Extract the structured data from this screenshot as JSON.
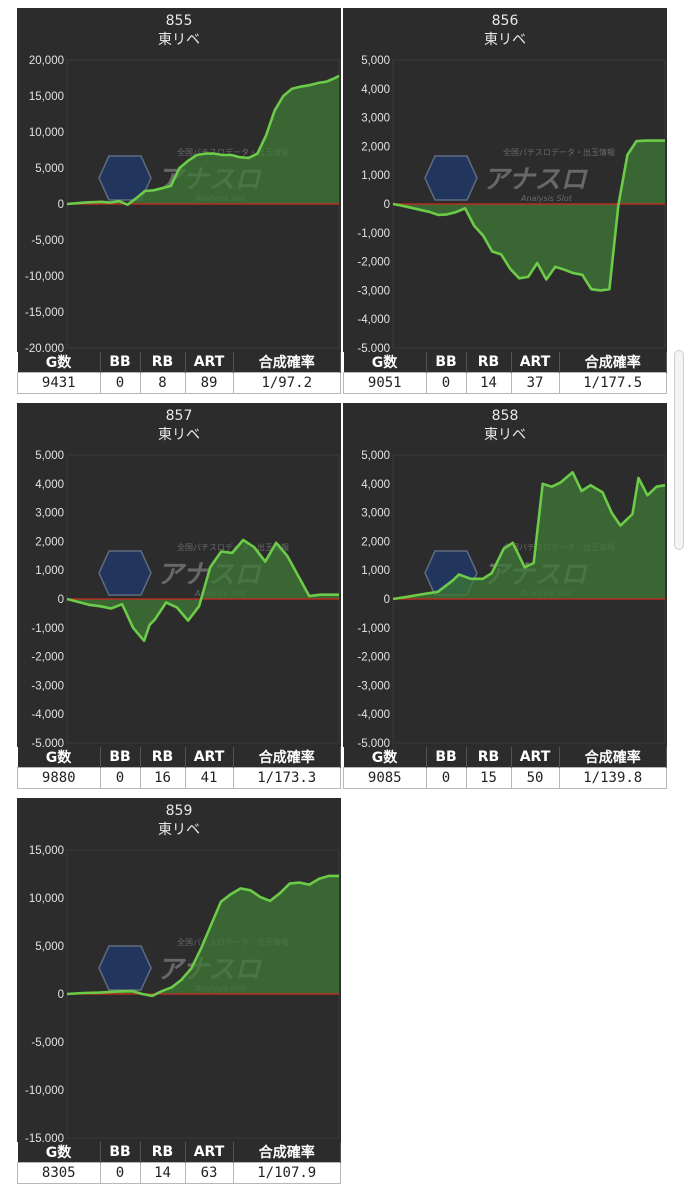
{
  "colors": {
    "line": "#6ccb49",
    "fill": "#3e7a36",
    "zero": "#d12a1f",
    "bg": "#2c2c2c"
  },
  "watermark": {
    "kana": "アナスロ",
    "tag": "Analysis Slot",
    "top": "全国パチスロデータ・出玉情報"
  },
  "stat_headers": [
    "G数",
    "BB",
    "RB",
    "ART",
    "合成確率"
  ],
  "panels": [
    {
      "id": "855",
      "name": "東リベ",
      "stats": [
        "9431",
        "0",
        "8",
        "89",
        "1/97.2"
      ]
    },
    {
      "id": "856",
      "name": "東リベ",
      "stats": [
        "9051",
        "0",
        "14",
        "37",
        "1/177.5"
      ]
    },
    {
      "id": "857",
      "name": "東リベ",
      "stats": [
        "9880",
        "0",
        "16",
        "41",
        "1/173.3"
      ]
    },
    {
      "id": "858",
      "name": "東リベ",
      "stats": [
        "9085",
        "0",
        "15",
        "50",
        "1/139.8"
      ]
    },
    {
      "id": "859",
      "name": "東リベ",
      "stats": [
        "8305",
        "0",
        "14",
        "63",
        "1/107.9"
      ]
    }
  ],
  "chart_data": [
    {
      "type": "area",
      "title": "855 東リベ",
      "ylim": [
        -20000,
        20000
      ],
      "yticks": [
        "20,000",
        "15,000",
        "10,000",
        "5,000",
        "0",
        "-5,000",
        "-10,000",
        "-15,000",
        "-20,000"
      ],
      "x": [
        0,
        300,
        600,
        900,
        1200,
        1500,
        1800,
        2100,
        2400,
        2700,
        3000,
        3300,
        3600,
        3900,
        4200,
        4500,
        4800,
        5100,
        5400,
        5700,
        6000,
        6300,
        6600,
        6900,
        7200,
        7500,
        7800,
        8100,
        8400,
        8700,
        9000,
        9300,
        9431
      ],
      "y": [
        0,
        100,
        200,
        250,
        300,
        200,
        400,
        -100,
        800,
        1800,
        1900,
        2200,
        2500,
        5000,
        6000,
        6800,
        7000,
        7000,
        6800,
        6800,
        6500,
        6400,
        7000,
        9500,
        13000,
        15000,
        16000,
        16300,
        16500,
        16800,
        17000,
        17500,
        17800
      ]
    },
    {
      "type": "area",
      "title": "856 東リベ",
      "ylim": [
        -5000,
        5000
      ],
      "yticks": [
        "5,000",
        "4,000",
        "3,000",
        "2,000",
        "1,000",
        "0",
        "-1,000",
        "-2,000",
        "-3,000",
        "-4,000",
        "-5,000"
      ],
      "x": [
        0,
        300,
        600,
        900,
        1200,
        1500,
        1800,
        2100,
        2400,
        2700,
        3000,
        3300,
        3600,
        3900,
        4200,
        4500,
        4800,
        5100,
        5400,
        5700,
        6000,
        6300,
        6600,
        6900,
        7200,
        7500,
        7800,
        8100,
        8400,
        8700,
        9051
      ],
      "y": [
        0,
        -60,
        -130,
        -200,
        -270,
        -380,
        -360,
        -280,
        -150,
        -750,
        -1100,
        -1650,
        -1750,
        -2250,
        -2580,
        -2530,
        -2050,
        -2620,
        -2180,
        -2280,
        -2400,
        -2460,
        -2960,
        -3000,
        -2960,
        -30,
        1700,
        2180,
        2200,
        2200,
        2200
      ]
    },
    {
      "type": "area",
      "title": "857 東リベ",
      "ylim": [
        -5000,
        5000
      ],
      "yticks": [
        "5,000",
        "4,000",
        "3,000",
        "2,000",
        "1,000",
        "0",
        "-1,000",
        "-2,000",
        "-3,000",
        "-4,000",
        "-5,000"
      ],
      "x": [
        0,
        400,
        800,
        1200,
        1600,
        2000,
        2400,
        2800,
        3000,
        3200,
        3600,
        4000,
        4400,
        4800,
        5200,
        5600,
        6000,
        6400,
        6800,
        7200,
        7600,
        8000,
        8400,
        8800,
        9200,
        9880
      ],
      "y": [
        0,
        -100,
        -200,
        -250,
        -330,
        -180,
        -1000,
        -1450,
        -900,
        -700,
        -120,
        -300,
        -750,
        -250,
        1100,
        1650,
        1600,
        2050,
        1800,
        1300,
        1950,
        1500,
        800,
        100,
        150,
        150
      ]
    },
    {
      "type": "area",
      "title": "858 東リベ",
      "ylim": [
        -5000,
        5000
      ],
      "yticks": [
        "5,000",
        "4,000",
        "3,000",
        "2,000",
        "1,000",
        "0",
        "-1,000",
        "-2,000",
        "-3,000",
        "-4,000",
        "-5,000"
      ],
      "x": [
        0,
        500,
        1000,
        1500,
        2000,
        2200,
        2600,
        3000,
        3300,
        3700,
        4000,
        4400,
        4700,
        5000,
        5300,
        5600,
        6000,
        6300,
        6600,
        7000,
        7300,
        7600,
        8000,
        8200,
        8500,
        8800,
        9085
      ],
      "y": [
        0,
        80,
        170,
        250,
        650,
        850,
        700,
        700,
        900,
        1750,
        1950,
        1100,
        1250,
        4000,
        3900,
        4050,
        4400,
        3750,
        3950,
        3700,
        3000,
        2550,
        2950,
        4200,
        3600,
        3900,
        3950
      ]
    },
    {
      "type": "area",
      "title": "859 東リベ",
      "ylim": [
        -15000,
        15000
      ],
      "yticks": [
        "15,000",
        "10,000",
        "5,000",
        "0",
        "-5,000",
        "-10,000",
        "-15,000"
      ],
      "x": [
        0,
        500,
        1000,
        1500,
        2000,
        2300,
        2600,
        2900,
        3200,
        3500,
        3800,
        4100,
        4400,
        4700,
        5000,
        5300,
        5600,
        5900,
        6200,
        6500,
        6800,
        7100,
        7400,
        7700,
        8000,
        8305
      ],
      "y": [
        0,
        100,
        150,
        250,
        300,
        0,
        -200,
        300,
        700,
        1500,
        2700,
        4800,
        7200,
        9600,
        10400,
        11000,
        10800,
        10100,
        9700,
        10500,
        11500,
        11600,
        11400,
        12000,
        12300,
        12300
      ]
    }
  ]
}
